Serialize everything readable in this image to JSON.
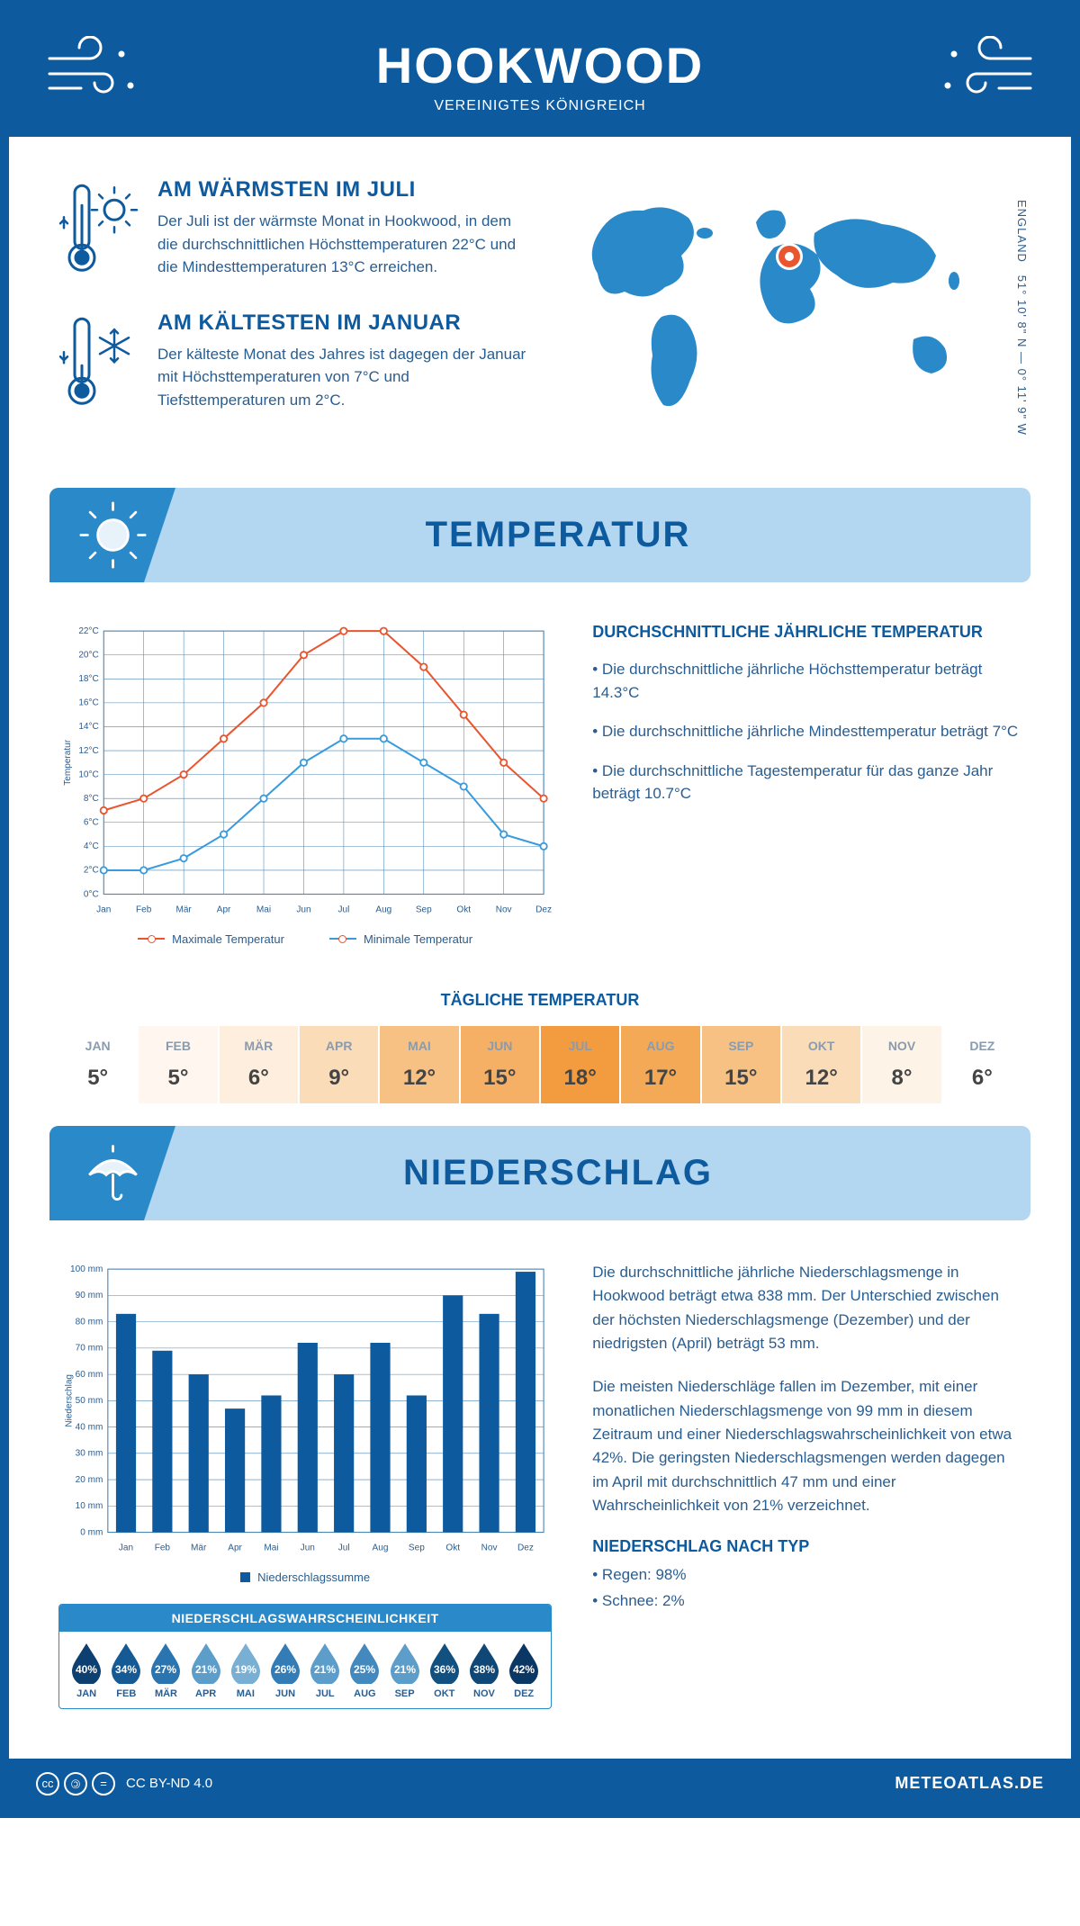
{
  "header": {
    "title": "HOOKWOOD",
    "subtitle": "VEREINIGTES KÖNIGREICH"
  },
  "coords": {
    "text": "51° 10' 8\" N — 0° 11' 9\" W",
    "region": "ENGLAND"
  },
  "facts": {
    "warm": {
      "title": "AM WÄRMSTEN IM JULI",
      "body": "Der Juli ist der wärmste Monat in Hookwood, in dem die durchschnittlichen Höchsttemperaturen 22°C und die Mindesttemperaturen 13°C erreichen."
    },
    "cold": {
      "title": "AM KÄLTESTEN IM JANUAR",
      "body": "Der kälteste Monat des Jahres ist dagegen der Januar mit Höchsttemperaturen von 7°C und Tiefsttemperaturen um 2°C."
    }
  },
  "sections": {
    "temperature": "TEMPERATUR",
    "precipitation": "NIEDERSCHLAG"
  },
  "temp_chart": {
    "type": "line",
    "months": [
      "Jan",
      "Feb",
      "Mär",
      "Apr",
      "Mai",
      "Jun",
      "Jul",
      "Aug",
      "Sep",
      "Okt",
      "Nov",
      "Dez"
    ],
    "max_series": {
      "label": "Maximale Temperatur",
      "color": "#e8552f",
      "values": [
        7,
        8,
        10,
        13,
        16,
        20,
        22,
        22,
        19,
        15,
        11,
        8
      ]
    },
    "min_series": {
      "label": "Minimale Temperatur",
      "color": "#3a9bdc",
      "values": [
        2,
        2,
        3,
        5,
        8,
        11,
        13,
        13,
        11,
        9,
        5,
        4
      ]
    },
    "ylabel": "Temperatur",
    "ylim": [
      0,
      22
    ],
    "ytick_step": 2,
    "ysuffix": "°C",
    "grid_color": "#4a84b3",
    "bg": "#ffffff"
  },
  "temp_info": {
    "heading": "DURCHSCHNITTLICHE JÄHRLICHE TEMPERATUR",
    "bullets": [
      "• Die durchschnittliche jährliche Höchsttemperatur beträgt 14.3°C",
      "• Die durchschnittliche jährliche Mindesttemperatur beträgt 7°C",
      "• Die durchschnittliche Tagestemperatur für das ganze Jahr beträgt 10.7°C"
    ]
  },
  "daily_temp": {
    "title": "TÄGLICHE TEMPERATUR",
    "months": [
      "JAN",
      "FEB",
      "MÄR",
      "APR",
      "MAI",
      "JUN",
      "JUL",
      "AUG",
      "SEP",
      "OKT",
      "NOV",
      "DEZ"
    ],
    "values": [
      "5°",
      "5°",
      "6°",
      "9°",
      "12°",
      "15°",
      "18°",
      "17°",
      "15°",
      "12°",
      "8°",
      "6°"
    ],
    "colors": [
      "#ffffff",
      "#fff7ef",
      "#fdeedd",
      "#fbdcb8",
      "#f8c184",
      "#f6b066",
      "#f39b3f",
      "#f4a956",
      "#f8c184",
      "#fbdcb8",
      "#fef3e7",
      "#ffffff"
    ]
  },
  "precip_chart": {
    "type": "bar",
    "months": [
      "Jan",
      "Feb",
      "Mär",
      "Apr",
      "Mai",
      "Jun",
      "Jul",
      "Aug",
      "Sep",
      "Okt",
      "Nov",
      "Dez"
    ],
    "values": [
      83,
      69,
      60,
      47,
      52,
      72,
      60,
      72,
      52,
      90,
      83,
      99
    ],
    "bar_color": "#0d5a9e",
    "ylabel": "Niederschlag",
    "ylim": [
      0,
      100
    ],
    "ytick_step": 10,
    "ysuffix": " mm",
    "grid_color": "#4a84b3",
    "legend": "Niederschlagssumme"
  },
  "precip_text": {
    "p1": "Die durchschnittliche jährliche Niederschlagsmenge in Hookwood beträgt etwa 838 mm. Der Unterschied zwischen der höchsten Niederschlagsmenge (Dezember) und der niedrigsten (April) beträgt 53 mm.",
    "p2": "Die meisten Niederschläge fallen im Dezember, mit einer monatlichen Niederschlagsmenge von 99 mm in diesem Zeitraum und einer Niederschlagswahrscheinlichkeit von etwa 42%. Die geringsten Niederschlagsmengen werden dagegen im April mit durchschnittlich 47 mm und einer Wahrscheinlichkeit von 21% verzeichnet.",
    "type_heading": "NIEDERSCHLAG NACH TYP",
    "type_b1": "• Regen: 98%",
    "type_b2": "• Schnee: 2%"
  },
  "prob": {
    "title": "NIEDERSCHLAGSWAHRSCHEINLICHKEIT",
    "months": [
      "JAN",
      "FEB",
      "MÄR",
      "APR",
      "MAI",
      "JUN",
      "JUL",
      "AUG",
      "SEP",
      "OKT",
      "NOV",
      "DEZ"
    ],
    "values": [
      40,
      34,
      27,
      21,
      19,
      26,
      21,
      25,
      21,
      36,
      38,
      42
    ],
    "colors": [
      "#0d3f70",
      "#155a94",
      "#2a74b0",
      "#5d9dc9",
      "#79afd3",
      "#347cb5",
      "#5d9dc9",
      "#4489be",
      "#5d9dc9",
      "#12507f",
      "#0f4776",
      "#0b3765"
    ]
  },
  "footer": {
    "license": "CC BY-ND 4.0",
    "site": "METEOATLAS.DE"
  }
}
